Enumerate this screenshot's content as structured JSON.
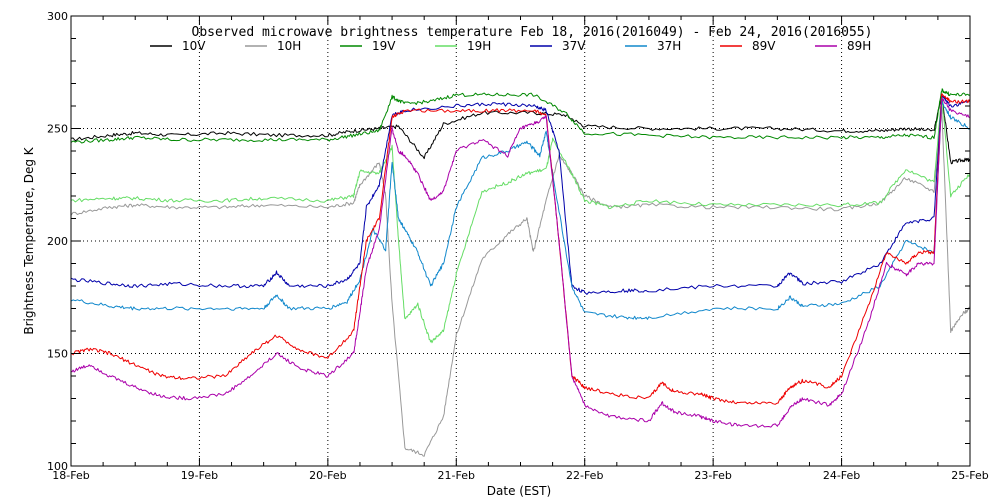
{
  "chart_data": {
    "type": "line",
    "title": "Observed microwave brightness temperature Feb 18, 2016(2016049) - Feb 24, 2016(2016055)",
    "xlabel": "Date (EST)",
    "ylabel": "Brightness Temperature, Deg K",
    "xlim": [
      0,
      7
    ],
    "ylim": [
      100,
      300
    ],
    "grid": true,
    "legend_position": "top",
    "x_ticks": [
      {
        "value": 0,
        "label": "18-Feb"
      },
      {
        "value": 1,
        "label": "19-Feb"
      },
      {
        "value": 2,
        "label": "20-Feb"
      },
      {
        "value": 3,
        "label": "21-Feb"
      },
      {
        "value": 4,
        "label": "22-Feb"
      },
      {
        "value": 5,
        "label": "23-Feb"
      },
      {
        "value": 6,
        "label": "24-Feb"
      },
      {
        "value": 7,
        "label": "25-Feb"
      }
    ],
    "y_ticks": [
      100,
      150,
      200,
      250,
      300
    ],
    "series": [
      {
        "name": "10V",
        "color": "#000000",
        "x": [
          0,
          0.3,
          0.5,
          0.8,
          1.2,
          1.6,
          2.0,
          2.2,
          2.4,
          2.55,
          2.75,
          2.9,
          3.2,
          3.6,
          3.85,
          4.0,
          4.5,
          5.0,
          5.5,
          6.0,
          6.3,
          6.5,
          6.72,
          6.78,
          6.85,
          6.95,
          7.0
        ],
        "values": [
          245,
          247,
          248,
          247,
          248,
          247,
          247,
          249,
          250,
          251,
          237,
          252,
          257,
          257,
          256,
          251,
          250,
          250,
          250,
          249,
          249,
          250,
          249,
          265,
          235,
          236,
          236
        ]
      },
      {
        "name": "10H",
        "color": "#999999",
        "x": [
          0,
          0.3,
          0.5,
          0.8,
          1.2,
          1.5,
          2.0,
          2.2,
          2.25,
          2.4,
          2.45,
          2.5,
          2.6,
          2.75,
          2.9,
          3.0,
          3.2,
          3.4,
          3.55,
          3.6,
          3.7,
          3.8,
          3.9,
          4.0,
          4.2,
          4.5,
          5.0,
          5.5,
          6.0,
          6.3,
          6.5,
          6.72,
          6.78,
          6.85,
          6.95,
          7.0
        ],
        "values": [
          212,
          215,
          216,
          215,
          215,
          216,
          215,
          217,
          225,
          235,
          220,
          172,
          108,
          105,
          122,
          158,
          192,
          203,
          210,
          195,
          218,
          238,
          230,
          220,
          215,
          216,
          215,
          215,
          214,
          217,
          228,
          222,
          260,
          160,
          168,
          170
        ]
      },
      {
        "name": "19V",
        "color": "#008800",
        "x": [
          0,
          0.3,
          0.5,
          0.8,
          1.2,
          1.6,
          2.0,
          2.2,
          2.4,
          2.5,
          2.6,
          2.8,
          3.0,
          3.3,
          3.6,
          3.85,
          4.0,
          4.5,
          5.0,
          5.5,
          6.0,
          6.3,
          6.5,
          6.72,
          6.78,
          6.85,
          7.0
        ],
        "values": [
          244,
          245,
          246,
          245,
          245,
          245,
          245,
          247,
          249,
          264,
          261,
          262,
          265,
          265,
          265,
          257,
          248,
          247,
          246,
          246,
          246,
          246,
          247,
          246,
          267,
          265,
          265
        ]
      },
      {
        "name": "19H",
        "color": "#66dd66",
        "x": [
          0,
          0.3,
          0.5,
          0.8,
          1.2,
          1.5,
          2.0,
          2.2,
          2.25,
          2.4,
          2.5,
          2.55,
          2.6,
          2.7,
          2.8,
          2.9,
          3.0,
          3.2,
          3.4,
          3.55,
          3.7,
          3.75,
          3.9,
          4.0,
          4.2,
          4.5,
          5.0,
          5.5,
          6.0,
          6.3,
          6.5,
          6.72,
          6.78,
          6.85,
          7.0
        ],
        "values": [
          218,
          219,
          219,
          218,
          218,
          219,
          218,
          220,
          231,
          230,
          242,
          200,
          165,
          172,
          155,
          160,
          185,
          222,
          226,
          230,
          232,
          245,
          230,
          218,
          215,
          218,
          216,
          216,
          216,
          217,
          232,
          226,
          265,
          220,
          230
        ]
      },
      {
        "name": "37V",
        "color": "#0000aa",
        "x": [
          0,
          0.3,
          0.5,
          0.8,
          1.2,
          1.5,
          1.6,
          1.7,
          2.0,
          2.15,
          2.25,
          2.3,
          2.4,
          2.5,
          2.6,
          3.0,
          3.3,
          3.6,
          3.7,
          3.8,
          3.9,
          4.0,
          4.3,
          4.5,
          5.0,
          5.5,
          5.6,
          5.7,
          6.0,
          6.3,
          6.5,
          6.72,
          6.78,
          6.85,
          7.0
        ],
        "values": [
          183,
          181,
          180,
          181,
          180,
          180,
          186,
          180,
          180,
          183,
          190,
          215,
          225,
          256,
          258,
          260,
          261,
          260,
          258,
          240,
          180,
          177,
          178,
          178,
          180,
          180,
          186,
          181,
          182,
          190,
          208,
          210,
          265,
          260,
          262
        ]
      },
      {
        "name": "37H",
        "color": "#1188cc",
        "x": [
          0,
          0.3,
          0.5,
          0.8,
          1.2,
          1.5,
          1.6,
          1.7,
          2.0,
          2.15,
          2.25,
          2.35,
          2.45,
          2.5,
          2.55,
          2.6,
          2.7,
          2.8,
          2.9,
          3.0,
          3.2,
          3.4,
          3.55,
          3.65,
          3.7,
          3.75,
          3.9,
          4.0,
          4.3,
          4.5,
          5.0,
          5.5,
          5.6,
          5.7,
          6.0,
          6.3,
          6.5,
          6.72,
          6.78,
          6.85,
          7.0
        ],
        "values": [
          174,
          171,
          170,
          170,
          170,
          170,
          176,
          170,
          170,
          173,
          183,
          205,
          196,
          235,
          210,
          205,
          195,
          180,
          190,
          215,
          237,
          240,
          244,
          238,
          249,
          230,
          180,
          168,
          166,
          166,
          170,
          170,
          175,
          171,
          172,
          180,
          200,
          195,
          262,
          255,
          250
        ]
      },
      {
        "name": "89V",
        "color": "#ee0000",
        "x": [
          0,
          0.15,
          0.3,
          0.5,
          0.7,
          0.9,
          1.2,
          1.4,
          1.6,
          1.8,
          2.0,
          2.2,
          2.25,
          2.3,
          2.4,
          2.5,
          2.6,
          3.0,
          3.3,
          3.6,
          3.7,
          3.8,
          3.9,
          4.0,
          4.2,
          4.5,
          4.6,
          4.7,
          4.9,
          5.0,
          5.2,
          5.5,
          5.6,
          5.7,
          5.9,
          6.0,
          6.2,
          6.35,
          6.5,
          6.6,
          6.72,
          6.78,
          6.85,
          7.0
        ],
        "values": [
          150,
          152,
          150,
          145,
          140,
          139,
          140,
          150,
          158,
          151,
          148,
          160,
          180,
          200,
          210,
          255,
          258,
          258,
          258,
          258,
          256,
          200,
          140,
          135,
          132,
          130,
          137,
          133,
          132,
          130,
          128,
          128,
          135,
          138,
          135,
          140,
          170,
          195,
          190,
          195,
          195,
          265,
          262,
          262
        ]
      },
      {
        "name": "89H",
        "color": "#aa00aa",
        "x": [
          0,
          0.15,
          0.3,
          0.5,
          0.7,
          0.9,
          1.2,
          1.4,
          1.6,
          1.8,
          2.0,
          2.2,
          2.25,
          2.3,
          2.4,
          2.5,
          2.55,
          2.6,
          2.7,
          2.8,
          2.9,
          3.0,
          3.2,
          3.4,
          3.5,
          3.6,
          3.7,
          3.8,
          3.9,
          4.0,
          4.2,
          4.5,
          4.6,
          4.7,
          4.9,
          5.0,
          5.2,
          5.5,
          5.6,
          5.7,
          5.9,
          6.0,
          6.2,
          6.35,
          6.5,
          6.6,
          6.72,
          6.78,
          6.85,
          7.0
        ],
        "values": [
          142,
          145,
          140,
          135,
          131,
          130,
          132,
          140,
          150,
          143,
          140,
          150,
          168,
          188,
          205,
          250,
          240,
          238,
          230,
          218,
          222,
          240,
          245,
          238,
          250,
          252,
          255,
          200,
          140,
          127,
          122,
          120,
          128,
          124,
          122,
          120,
          118,
          118,
          126,
          130,
          127,
          132,
          162,
          190,
          185,
          190,
          190,
          264,
          258,
          255
        ]
      }
    ]
  }
}
